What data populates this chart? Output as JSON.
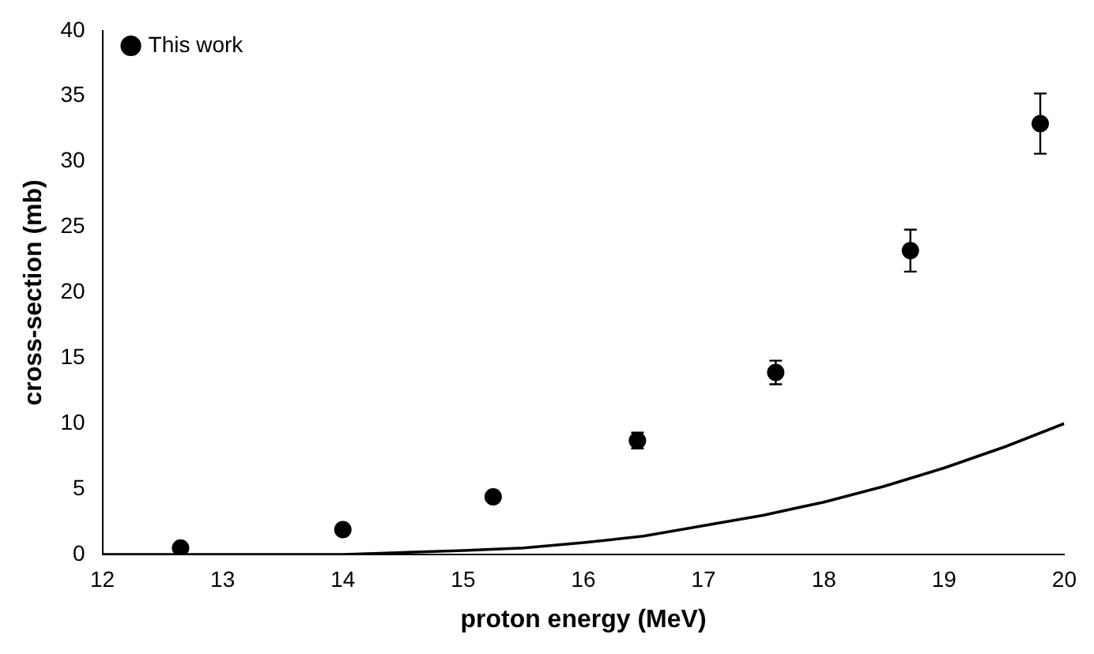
{
  "chart_data": {
    "type": "scatter",
    "xlabel": "proton energy (MeV)",
    "ylabel": "cross-section (mb)",
    "xlim": [
      12,
      20
    ],
    "xticks": [
      12,
      13,
      14,
      15,
      16,
      17,
      18,
      19,
      20
    ],
    "ylim": [
      0,
      40
    ],
    "yticks": [
      0,
      5,
      10,
      15,
      20,
      25,
      30,
      35,
      40
    ],
    "grid": false,
    "legend": "top left",
    "series": [
      {
        "name": "This work",
        "color": "#000000",
        "marker": "circle",
        "x": [
          12.65,
          14.0,
          15.25,
          16.45,
          17.6,
          18.72,
          19.8
        ],
        "values": [
          0.5,
          1.9,
          4.4,
          8.7,
          13.9,
          23.2,
          32.9
        ],
        "errors": [
          null,
          null,
          null,
          0.6,
          0.9,
          1.6,
          2.3
        ]
      },
      {
        "type": "line",
        "color": "#000000",
        "marker": "none",
        "line_style": "solid",
        "x": [
          12,
          13,
          14,
          15,
          15.5,
          16,
          16.5,
          17,
          17.5,
          18,
          18.5,
          19,
          19.5,
          20
        ],
        "values": [
          0,
          0,
          0,
          0.3,
          0.5,
          0.9,
          1.4,
          2.2,
          3.0,
          4.0,
          5.2,
          6.6,
          8.2,
          10.0
        ]
      }
    ]
  }
}
